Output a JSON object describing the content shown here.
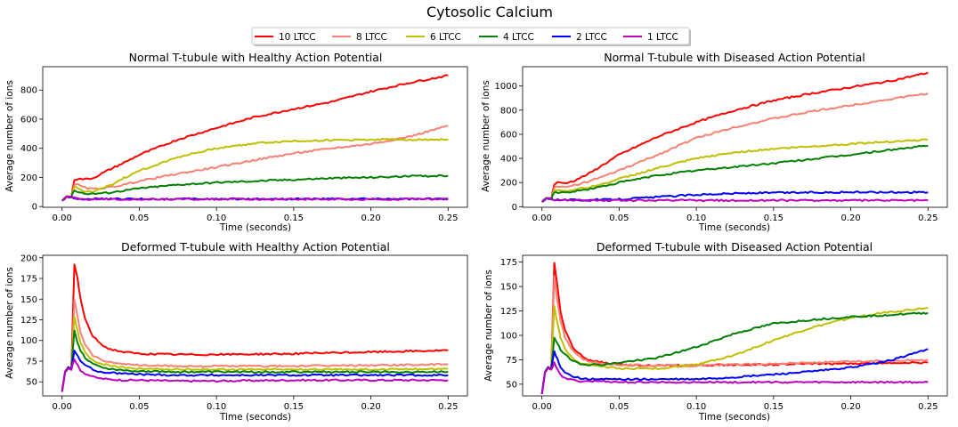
{
  "figure": {
    "title": "Cytosolic Calcium"
  },
  "legend": {
    "placement": "top-center",
    "entries": [
      {
        "label": "10 LTCC",
        "color": "#ff0000"
      },
      {
        "label": "8 LTCC",
        "color": "#fa8072"
      },
      {
        "label": "6 LTCC",
        "color": "#bfbf00"
      },
      {
        "label": "4 LTCC",
        "color": "#008000"
      },
      {
        "label": "2 LTCC",
        "color": "#0000ff"
      },
      {
        "label": "1 LTCC",
        "color": "#bf00bf"
      }
    ]
  },
  "chart_data": [
    {
      "type": "line",
      "title": "Normal T-tubule with Healthy Action Potential",
      "xlabel": "Time (seconds)",
      "ylabel": "Average number of ions",
      "xlim": [
        -0.0125,
        0.2625
      ],
      "ylim": [
        -5,
        960
      ],
      "xticks": [
        "0.00",
        "0.05",
        "0.10",
        "0.15",
        "0.20",
        "0.25"
      ],
      "yticks": [
        "0",
        "200",
        "400",
        "600",
        "800"
      ],
      "x": [
        0,
        0.003,
        0.006,
        0.008,
        0.01,
        0.015,
        0.02,
        0.03,
        0.04,
        0.05,
        0.075,
        0.1,
        0.125,
        0.15,
        0.175,
        0.2,
        0.225,
        0.25
      ],
      "series": [
        {
          "name": "10 LTCC",
          "color": "#ff0000",
          "values": [
            40,
            70,
            65,
            185,
            190,
            188,
            195,
            250,
            300,
            355,
            460,
            540,
            615,
            670,
            720,
            790,
            850,
            900
          ]
        },
        {
          "name": "8 LTCC",
          "color": "#fa8072",
          "values": [
            40,
            70,
            65,
            155,
            150,
            128,
            120,
            130,
            150,
            175,
            225,
            270,
            320,
            365,
            400,
            430,
            480,
            555
          ]
        },
        {
          "name": "6 LTCC",
          "color": "#bfbf00",
          "values": [
            40,
            70,
            65,
            140,
            125,
            105,
            100,
            140,
            195,
            245,
            340,
            400,
            435,
            450,
            455,
            460,
            460,
            460
          ]
        },
        {
          "name": "4 LTCC",
          "color": "#008000",
          "values": [
            40,
            70,
            65,
            115,
            100,
            90,
            88,
            95,
            110,
            125,
            150,
            165,
            175,
            185,
            195,
            200,
            208,
            212
          ]
        },
        {
          "name": "2 LTCC",
          "color": "#0000ff",
          "values": [
            40,
            70,
            65,
            60,
            55,
            52,
            52,
            52,
            52,
            52,
            52,
            52,
            52,
            52,
            52,
            52,
            52,
            52
          ]
        },
        {
          "name": "1 LTCC",
          "color": "#bf00bf",
          "values": [
            40,
            70,
            65,
            58,
            55,
            52,
            50,
            50,
            50,
            50,
            50,
            50,
            50,
            50,
            50,
            50,
            50,
            50
          ]
        }
      ]
    },
    {
      "type": "line",
      "title": "Normal T-tubule with Diseased Action Potential",
      "xlabel": "Time (seconds)",
      "ylabel": "Average number of ions",
      "xlim": [
        -0.0125,
        0.2625
      ],
      "ylim": [
        -5,
        1160
      ],
      "xticks": [
        "0.00",
        "0.05",
        "0.10",
        "0.15",
        "0.20",
        "0.25"
      ],
      "yticks": [
        "0",
        "200",
        "400",
        "600",
        "800",
        "1000"
      ],
      "x": [
        0,
        0.003,
        0.006,
        0.008,
        0.01,
        0.015,
        0.02,
        0.03,
        0.04,
        0.05,
        0.075,
        0.1,
        0.125,
        0.15,
        0.175,
        0.2,
        0.225,
        0.25
      ],
      "series": [
        {
          "name": "10 LTCC",
          "color": "#ff0000",
          "values": [
            40,
            70,
            65,
            185,
            200,
            195,
            210,
            270,
            350,
            430,
            580,
            700,
            800,
            880,
            940,
            990,
            1040,
            1110
          ]
        },
        {
          "name": "8 LTCC",
          "color": "#fa8072",
          "values": [
            40,
            70,
            65,
            160,
            165,
            160,
            175,
            210,
            250,
            300,
            430,
            570,
            660,
            730,
            790,
            840,
            890,
            940
          ]
        },
        {
          "name": "6 LTCC",
          "color": "#bfbf00",
          "values": [
            40,
            70,
            65,
            140,
            140,
            130,
            140,
            160,
            190,
            230,
            320,
            400,
            450,
            480,
            500,
            520,
            540,
            555
          ]
        },
        {
          "name": "4 LTCC",
          "color": "#008000",
          "values": [
            40,
            70,
            65,
            120,
            120,
            115,
            125,
            145,
            170,
            200,
            260,
            300,
            330,
            360,
            395,
            430,
            470,
            505
          ]
        },
        {
          "name": "2 LTCC",
          "color": "#0000ff",
          "values": [
            40,
            70,
            65,
            60,
            58,
            56,
            55,
            56,
            58,
            62,
            80,
            100,
            110,
            115,
            118,
            120,
            120,
            120
          ]
        },
        {
          "name": "1 LTCC",
          "color": "#bf00bf",
          "values": [
            40,
            70,
            65,
            58,
            55,
            52,
            52,
            52,
            52,
            52,
            52,
            52,
            52,
            52,
            52,
            52,
            52,
            52
          ]
        }
      ]
    },
    {
      "type": "line",
      "title": "Deformed T-tubule with Healthy Action Potential",
      "xlabel": "Time (seconds)",
      "ylabel": "Average number of ions",
      "xlim": [
        -0.0125,
        0.2625
      ],
      "ylim": [
        33,
        203
      ],
      "xticks": [
        "0.00",
        "0.05",
        "0.10",
        "0.15",
        "0.20",
        "0.25"
      ],
      "yticks": [
        "50",
        "75",
        "100",
        "125",
        "150",
        "175",
        "200"
      ],
      "x": [
        0,
        0.002,
        0.004,
        0.006,
        0.008,
        0.01,
        0.012,
        0.015,
        0.02,
        0.025,
        0.03,
        0.04,
        0.05,
        0.075,
        0.1,
        0.15,
        0.2,
        0.25
      ],
      "series": [
        {
          "name": "10 LTCC",
          "color": "#ff0000",
          "values": [
            38,
            62,
            67,
            65,
            192,
            175,
            150,
            125,
            105,
            96,
            90,
            86,
            84,
            83,
            83,
            84,
            86,
            88
          ]
        },
        {
          "name": "8 LTCC",
          "color": "#fa8072",
          "values": [
            38,
            62,
            67,
            65,
            150,
            130,
            110,
            95,
            82,
            77,
            74,
            72,
            70,
            69,
            69,
            69,
            70,
            71
          ]
        },
        {
          "name": "6 LTCC",
          "color": "#bfbf00",
          "values": [
            38,
            62,
            67,
            65,
            128,
            112,
            97,
            85,
            76,
            72,
            70,
            67,
            66,
            65,
            65,
            65,
            65,
            66
          ]
        },
        {
          "name": "4 LTCC",
          "color": "#008000",
          "values": [
            38,
            62,
            67,
            65,
            112,
            98,
            88,
            79,
            72,
            68,
            66,
            64,
            63,
            62,
            62,
            62,
            62,
            62
          ]
        },
        {
          "name": "2 LTCC",
          "color": "#0000ff",
          "values": [
            38,
            62,
            67,
            65,
            88,
            82,
            75,
            70,
            65,
            62,
            61,
            60,
            59,
            58,
            58,
            58,
            58,
            58
          ]
        },
        {
          "name": "1 LTCC",
          "color": "#bf00bf",
          "values": [
            38,
            62,
            67,
            65,
            78,
            70,
            64,
            60,
            56,
            54,
            53,
            52,
            52,
            51,
            51,
            52,
            52,
            52
          ]
        }
      ]
    },
    {
      "type": "line",
      "title": "Deformed T-tubule with Diseased Action Potential",
      "xlabel": "Time (seconds)",
      "ylabel": "Average number of ions",
      "xlim": [
        -0.0125,
        0.2625
      ],
      "ylim": [
        38,
        182
      ],
      "xticks": [
        "0.00",
        "0.05",
        "0.10",
        "0.15",
        "0.20",
        "0.25"
      ],
      "yticks": [
        "50",
        "75",
        "100",
        "125",
        "150",
        "175"
      ],
      "x": [
        0,
        0.002,
        0.004,
        0.006,
        0.008,
        0.01,
        0.012,
        0.015,
        0.02,
        0.025,
        0.03,
        0.04,
        0.05,
        0.075,
        0.1,
        0.125,
        0.15,
        0.175,
        0.2,
        0.225,
        0.25
      ],
      "series": [
        {
          "name": "10 LTCC",
          "color": "#ff0000",
          "values": [
            40,
            62,
            67,
            65,
            175,
            150,
            125,
            105,
            88,
            80,
            75,
            72,
            70,
            69,
            69,
            70,
            70,
            71,
            71,
            72,
            72
          ]
        },
        {
          "name": "8 LTCC",
          "color": "#fa8072",
          "values": [
            40,
            62,
            67,
            65,
            160,
            135,
            115,
            98,
            84,
            77,
            73,
            71,
            70,
            69,
            69,
            70,
            71,
            72,
            73,
            74,
            75
          ]
        },
        {
          "name": "6 LTCC",
          "color": "#bfbf00",
          "values": [
            40,
            62,
            67,
            65,
            130,
            112,
            98,
            86,
            76,
            72,
            70,
            68,
            66,
            66,
            70,
            80,
            95,
            108,
            118,
            124,
            128
          ]
        },
        {
          "name": "4 LTCC",
          "color": "#008000",
          "values": [
            40,
            62,
            67,
            65,
            98,
            92,
            85,
            80,
            74,
            71,
            70,
            70,
            72,
            77,
            88,
            102,
            112,
            116,
            119,
            121,
            123
          ]
        },
        {
          "name": "2 LTCC",
          "color": "#0000ff",
          "values": [
            40,
            62,
            67,
            65,
            83,
            76,
            68,
            62,
            58,
            56,
            55,
            55,
            55,
            55,
            55,
            57,
            60,
            63,
            67,
            74,
            86
          ]
        },
        {
          "name": "1 LTCC",
          "color": "#bf00bf",
          "values": [
            40,
            62,
            67,
            65,
            72,
            66,
            60,
            56,
            54,
            53,
            53,
            53,
            52,
            52,
            52,
            52,
            52,
            52,
            52,
            52,
            52
          ]
        }
      ]
    }
  ]
}
